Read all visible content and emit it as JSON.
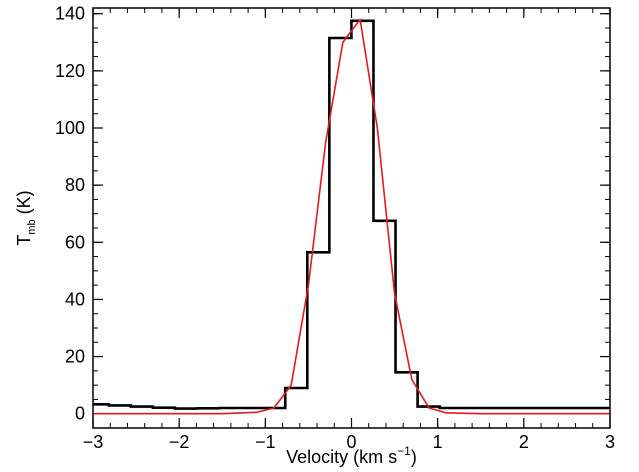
{
  "chart_data": {
    "type": "line",
    "xlabel": {
      "main": "Velocity (km s",
      "sup": "−1",
      "tail": ")"
    },
    "ylabel": {
      "main": "T",
      "sub": "mb",
      "tail": " (K)"
    },
    "xlim": [
      -3,
      3
    ],
    "ylim": [
      -5,
      142
    ],
    "xticks": [
      {
        "v": -3,
        "label": "−3"
      },
      {
        "v": -2,
        "label": "−2"
      },
      {
        "v": -1,
        "label": "−1"
      },
      {
        "v": 0,
        "label": "0"
      },
      {
        "v": 1,
        "label": "1"
      },
      {
        "v": 2,
        "label": "2"
      },
      {
        "v": 3,
        "label": "3"
      }
    ],
    "yticks": [
      {
        "v": 0,
        "label": "0"
      },
      {
        "v": 20,
        "label": "20"
      },
      {
        "v": 40,
        "label": "40"
      },
      {
        "v": 60,
        "label": "60"
      },
      {
        "v": 80,
        "label": "80"
      },
      {
        "v": 100,
        "label": "100"
      },
      {
        "v": 120,
        "label": "120"
      },
      {
        "v": 140,
        "label": "140"
      }
    ],
    "x_minor_step": 0.2,
    "y_minor_step": 5,
    "series": [
      {
        "style": "histogram",
        "color": "#000000",
        "bin_width": 0.256,
        "bins": [
          {
            "x": -2.945,
            "y": 3.3
          },
          {
            "x": -2.689,
            "y": 2.9
          },
          {
            "x": -2.433,
            "y": 2.5
          },
          {
            "x": -2.177,
            "y": 2.1
          },
          {
            "x": -1.921,
            "y": 1.8
          },
          {
            "x": -1.665,
            "y": 1.9
          },
          {
            "x": -1.409,
            "y": 2.0
          },
          {
            "x": -1.153,
            "y": 2.0
          },
          {
            "x": -0.897,
            "y": 2.0
          },
          {
            "x": -0.641,
            "y": 9.0
          },
          {
            "x": -0.385,
            "y": 56.5
          },
          {
            "x": -0.129,
            "y": 131.5
          },
          {
            "x": 0.127,
            "y": 137.5
          },
          {
            "x": 0.383,
            "y": 67.5
          },
          {
            "x": 0.639,
            "y": 14.5
          },
          {
            "x": 0.895,
            "y": 2.5
          },
          {
            "x": 1.151,
            "y": 2.0
          },
          {
            "x": 1.407,
            "y": 2.0
          },
          {
            "x": 1.663,
            "y": 2.0
          },
          {
            "x": 1.919,
            "y": 2.0
          },
          {
            "x": 2.175,
            "y": 2.0
          },
          {
            "x": 2.431,
            "y": 2.0
          },
          {
            "x": 2.687,
            "y": 2.0
          },
          {
            "x": 2.943,
            "y": 2.0
          }
        ]
      },
      {
        "style": "line",
        "color": "#e41a1c",
        "x": [
          -3.0,
          -2.5,
          -2.0,
          -1.5,
          -1.1,
          -0.9,
          -0.7,
          -0.5,
          -0.3,
          -0.1,
          0.1,
          0.3,
          0.5,
          0.7,
          0.9,
          1.1,
          1.5,
          2.0,
          2.5,
          3.0
        ],
        "y": [
          0,
          0,
          0,
          0,
          0.5,
          2,
          10,
          45,
          95,
          130,
          138,
          100,
          42,
          12,
          2,
          0.3,
          0,
          0,
          0,
          0
        ]
      }
    ]
  }
}
